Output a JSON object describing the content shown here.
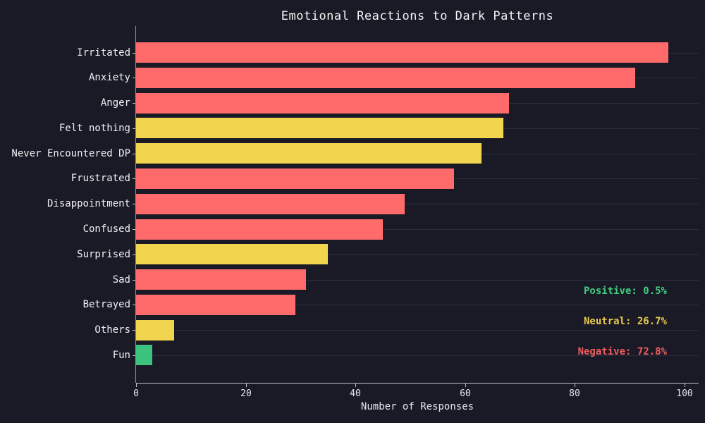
{
  "title": "Emotional Reactions to Dark Patterns",
  "chart_data": {
    "type": "bar",
    "orientation": "horizontal",
    "title": "Emotional Reactions to Dark Patterns",
    "xlabel": "Number of Responses",
    "ylabel": "",
    "xlim": [
      0,
      102.5
    ],
    "x_ticks": [
      0,
      20,
      40,
      60,
      80,
      100
    ],
    "grid": "horizontal-faint",
    "categories": [
      "Irritated",
      "Anxiety",
      "Anger",
      "Felt nothing",
      "Never Encountered DP",
      "Frustrated",
      "Disappointment",
      "Confused",
      "Surprised",
      "Sad",
      "Betrayed",
      "Others",
      "Fun"
    ],
    "values": [
      97,
      91,
      68,
      67,
      63,
      58,
      49,
      45,
      35,
      31,
      29,
      7,
      3
    ],
    "sentiments": [
      "negative",
      "negative",
      "negative",
      "neutral",
      "neutral",
      "negative",
      "negative",
      "negative",
      "neutral",
      "negative",
      "negative",
      "neutral",
      "positive"
    ],
    "sentiment_colors": {
      "negative": "#ff6b6b",
      "neutral": "#f2d54e",
      "positive": "#3cc17e"
    },
    "annotations": [
      {
        "label": "Positive: 0.5%",
        "color": "#43cd81"
      },
      {
        "label": "Neutral: 26.7%",
        "color": "#e9cb4e"
      },
      {
        "label": "Negative: 72.8%",
        "color": "#ef5d5d"
      }
    ]
  },
  "colors": {
    "background": "#1a1a26",
    "grid": "rgba(145,148,200,0.16)",
    "axis": "#c2c3cc",
    "text": "#f0f0f3"
  }
}
